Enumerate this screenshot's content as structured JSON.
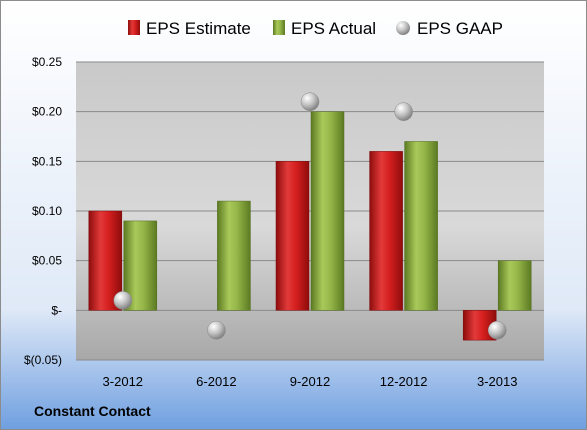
{
  "company": "Constant Contact",
  "colors": {
    "estimate": "#cc1a1a",
    "actual": "#8aab3c",
    "gaap": "#b3b3b3"
  },
  "chart_data": {
    "type": "bar",
    "categories": [
      "3-2012",
      "6-2012",
      "9-2012",
      "12-2012",
      "3-2013"
    ],
    "series": [
      {
        "name": "EPS Estimate",
        "kind": "bar",
        "values": [
          0.1,
          null,
          0.15,
          0.16,
          -0.03
        ]
      },
      {
        "name": "EPS Actual",
        "kind": "bar",
        "values": [
          0.09,
          0.11,
          0.2,
          0.17,
          0.05
        ]
      },
      {
        "name": "EPS GAAP",
        "kind": "marker",
        "values": [
          0.01,
          -0.02,
          0.21,
          0.2,
          -0.02
        ]
      }
    ],
    "yticks": [
      0.25,
      0.2,
      0.15,
      0.1,
      0.05,
      0,
      -0.05
    ],
    "ytick_labels": [
      "$0.25",
      "$0.20",
      "$0.15",
      "$0.10",
      "$0.05",
      "$-",
      "$(0.05)"
    ],
    "ylim": [
      -0.05,
      0.25
    ],
    "title": "",
    "xlabel": "",
    "ylabel": "",
    "grid": true,
    "legend_position": "top"
  }
}
